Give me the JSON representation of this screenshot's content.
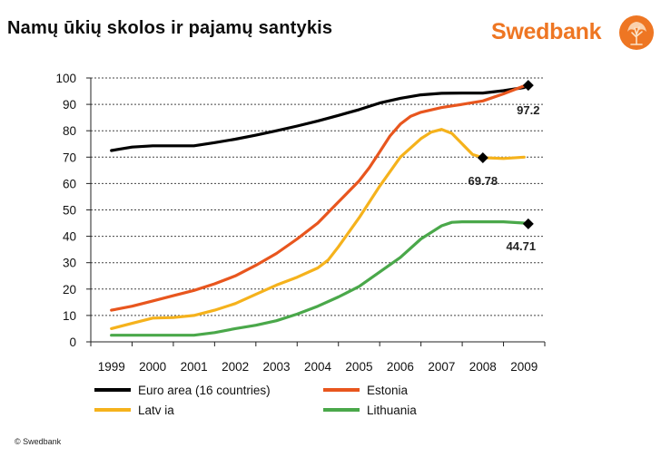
{
  "slide": {
    "title": "Namų ūkių skolos ir pajamų santykis",
    "copyright": "© Swedbank"
  },
  "brand": {
    "name": "Swedbank",
    "color": "#ee7623",
    "logo_icon": "oak-tree-icon"
  },
  "chart_data": {
    "type": "line",
    "title": "Namų ūkių skolos ir pajamų santykis",
    "xlabel": "",
    "ylabel": "",
    "categories": [
      "1999",
      "2000",
      "2001",
      "2002",
      "2003",
      "2004",
      "2005",
      "2006",
      "2007",
      "2008",
      "2009"
    ],
    "ylim": [
      0,
      100
    ],
    "yticks": [
      0,
      10,
      20,
      30,
      40,
      50,
      60,
      70,
      80,
      90,
      100
    ],
    "grid": true,
    "legend_position": "bottom",
    "series": [
      {
        "name": "Euro area (16 countries)",
        "color": "#000000",
        "points": [
          [
            1999,
            72.5
          ],
          [
            1999.5,
            73.8
          ],
          [
            2000,
            74.3
          ],
          [
            2000.5,
            74.3
          ],
          [
            2001,
            74.3
          ],
          [
            2001.5,
            75.5
          ],
          [
            2002,
            76.8
          ],
          [
            2002.5,
            78.3
          ],
          [
            2003,
            80
          ],
          [
            2003.5,
            81.8
          ],
          [
            2004,
            83.7
          ],
          [
            2004.5,
            85.8
          ],
          [
            2005,
            88
          ],
          [
            2005.5,
            90.5
          ],
          [
            2006,
            92.3
          ],
          [
            2006.5,
            93.6
          ],
          [
            2007,
            94.2
          ],
          [
            2007.5,
            94.3
          ],
          [
            2008,
            94.3
          ],
          [
            2008.5,
            95.2
          ],
          [
            2009,
            96.4
          ],
          [
            2009.1,
            97.2
          ]
        ],
        "marker": {
          "x": 2009.1,
          "y": 97.2,
          "label": "97.2"
        }
      },
      {
        "name": "Estonia",
        "color": "#e8561e",
        "points": [
          [
            1999,
            12
          ],
          [
            1999.5,
            13.5
          ],
          [
            2000,
            15.5
          ],
          [
            2000.5,
            17.5
          ],
          [
            2001,
            19.5
          ],
          [
            2001.5,
            22
          ],
          [
            2002,
            25
          ],
          [
            2002.5,
            29
          ],
          [
            2003,
            33.5
          ],
          [
            2003.5,
            39
          ],
          [
            2004,
            45
          ],
          [
            2004.5,
            53
          ],
          [
            2005,
            61
          ],
          [
            2005.25,
            66
          ],
          [
            2005.5,
            72
          ],
          [
            2005.75,
            78
          ],
          [
            2006,
            82.5
          ],
          [
            2006.25,
            85.5
          ],
          [
            2006.5,
            87
          ],
          [
            2007,
            88.8
          ],
          [
            2007.5,
            90
          ],
          [
            2008,
            91.3
          ],
          [
            2008.5,
            94
          ],
          [
            2009,
            97
          ]
        ],
        "marker": null
      },
      {
        "name": "Latv ia",
        "color": "#f5b21c",
        "points": [
          [
            1999,
            5
          ],
          [
            1999.5,
            7
          ],
          [
            2000,
            9
          ],
          [
            2000.5,
            9.2
          ],
          [
            2001,
            10
          ],
          [
            2001.5,
            12
          ],
          [
            2002,
            14.5
          ],
          [
            2002.5,
            18
          ],
          [
            2003,
            21.5
          ],
          [
            2003.5,
            24.5
          ],
          [
            2004,
            28
          ],
          [
            2004.25,
            31
          ],
          [
            2004.5,
            36
          ],
          [
            2005,
            47
          ],
          [
            2005.5,
            59
          ],
          [
            2006,
            70
          ],
          [
            2006.5,
            77
          ],
          [
            2006.75,
            79.5
          ],
          [
            2007,
            80.5
          ],
          [
            2007.25,
            79
          ],
          [
            2007.5,
            75
          ],
          [
            2007.75,
            71
          ],
          [
            2008,
            69.8
          ],
          [
            2008.5,
            69.5
          ],
          [
            2009,
            70
          ]
        ],
        "marker": {
          "x": 2008,
          "y": 69.78,
          "label": "69.78"
        }
      },
      {
        "name": "Lithuania",
        "color": "#4aa84a",
        "points": [
          [
            1999,
            2.5
          ],
          [
            1999.5,
            2.5
          ],
          [
            2000,
            2.5
          ],
          [
            2000.5,
            2.5
          ],
          [
            2001,
            2.5
          ],
          [
            2001.5,
            3.5
          ],
          [
            2002,
            5
          ],
          [
            2002.5,
            6.3
          ],
          [
            2003,
            8
          ],
          [
            2003.5,
            10.5
          ],
          [
            2004,
            13.5
          ],
          [
            2004.5,
            17
          ],
          [
            2005,
            21
          ],
          [
            2005.5,
            26.5
          ],
          [
            2006,
            32
          ],
          [
            2006.5,
            39
          ],
          [
            2007,
            44
          ],
          [
            2007.25,
            45.3
          ],
          [
            2007.5,
            45.5
          ],
          [
            2008,
            45.5
          ],
          [
            2008.5,
            45.5
          ],
          [
            2009,
            45
          ]
        ],
        "marker": {
          "x": 2009.1,
          "y": 44.71,
          "label": "44.71"
        }
      }
    ]
  }
}
